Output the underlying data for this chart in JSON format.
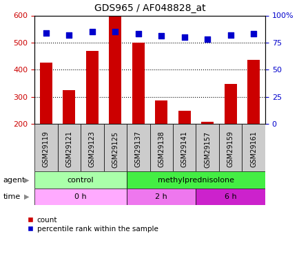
{
  "title": "GDS965 / AF048828_at",
  "samples": [
    "GSM29119",
    "GSM29121",
    "GSM29123",
    "GSM29125",
    "GSM29137",
    "GSM29138",
    "GSM29141",
    "GSM29157",
    "GSM29159",
    "GSM29161"
  ],
  "counts": [
    425,
    325,
    468,
    597,
    500,
    287,
    248,
    208,
    347,
    437
  ],
  "percentiles": [
    84,
    82,
    85,
    85,
    83,
    81,
    80,
    78,
    82,
    83
  ],
  "ylim_left": [
    200,
    600
  ],
  "ylim_right": [
    0,
    100
  ],
  "yticks_left": [
    200,
    300,
    400,
    500,
    600
  ],
  "yticks_right": [
    0,
    25,
    50,
    75,
    100
  ],
  "bar_color": "#cc0000",
  "dot_color": "#0000cc",
  "bar_bottom": 200,
  "agent_labels": [
    {
      "label": "control",
      "start": 0,
      "end": 4,
      "color": "#aaffaa"
    },
    {
      "label": "methylprednisolone",
      "start": 4,
      "end": 10,
      "color": "#44ee44"
    }
  ],
  "time_labels": [
    {
      "label": "0 h",
      "start": 0,
      "end": 4,
      "color": "#ffaaff"
    },
    {
      "label": "2 h",
      "start": 4,
      "end": 7,
      "color": "#ee77ee"
    },
    {
      "label": "6 h",
      "start": 7,
      "end": 10,
      "color": "#cc22cc"
    }
  ],
  "legend_count_color": "#cc0000",
  "legend_dot_color": "#0000cc",
  "tick_label_color_left": "#cc0000",
  "tick_label_color_right": "#0000cc",
  "gridline_y": [
    300,
    400,
    500
  ],
  "xtick_bg_color": "#cccccc",
  "spine_color": "#000000"
}
